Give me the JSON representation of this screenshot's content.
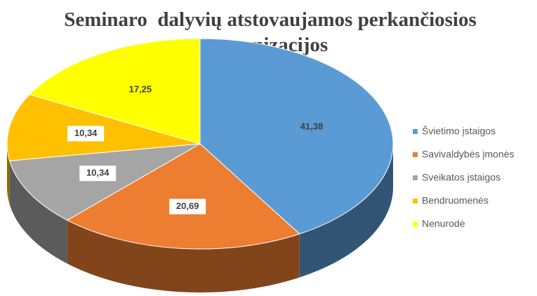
{
  "chart_data": {
    "type": "pie3d",
    "title": "Seminaro  dalyvių atstovaujamos perkančiosios organizacijos",
    "categories": [
      "Švietimo įstaigos",
      "Savivaldybės įmonės",
      "Sveikatos įstaigos",
      "Bendruomenės",
      "Nenurodė"
    ],
    "values": [
      41.38,
      20.69,
      10.34,
      10.34,
      17.25
    ],
    "value_labels": [
      "41,38",
      "20,69",
      "10,34",
      "10,34",
      "17,25"
    ],
    "colors": [
      "#5b9bd5",
      "#ed7d31",
      "#a5a5a5",
      "#ffc000",
      "#ffff00"
    ],
    "legend": "right"
  }
}
